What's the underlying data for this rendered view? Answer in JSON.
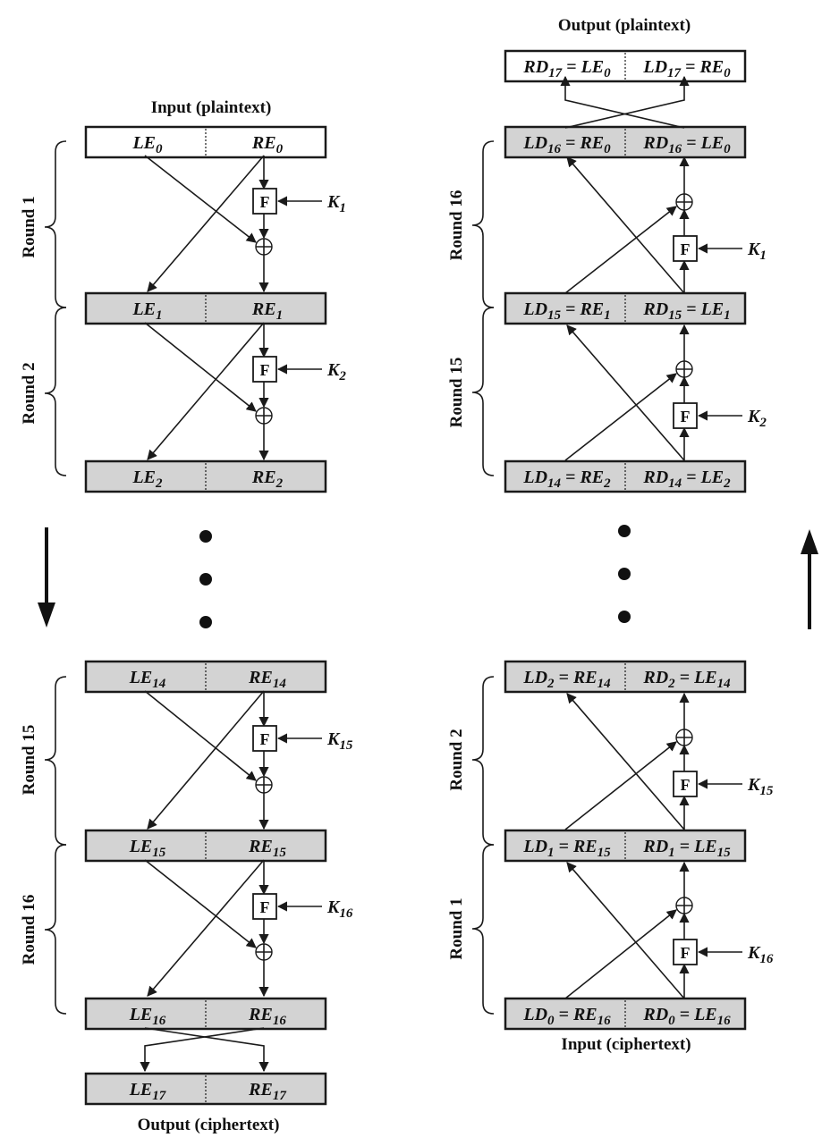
{
  "encryption": {
    "input_label": "Input (plaintext)",
    "output_label": "Output (ciphertext)",
    "rows": [
      {
        "left": [
          "LE",
          "0"
        ],
        "right": [
          "RE",
          "0"
        ],
        "style": "white"
      },
      {
        "left": [
          "LE",
          "1"
        ],
        "right": [
          "RE",
          "1"
        ],
        "style": "gray"
      },
      {
        "left": [
          "LE",
          "2"
        ],
        "right": [
          "RE",
          "2"
        ],
        "style": "gray"
      },
      {
        "left": [
          "LE",
          "14"
        ],
        "right": [
          "RE",
          "14"
        ],
        "style": "gray"
      },
      {
        "left": [
          "LE",
          "15"
        ],
        "right": [
          "RE",
          "15"
        ],
        "style": "gray"
      },
      {
        "left": [
          "LE",
          "16"
        ],
        "right": [
          "RE",
          "16"
        ],
        "style": "gray"
      },
      {
        "left": [
          "LE",
          "17"
        ],
        "right": [
          "RE",
          "17"
        ],
        "style": "gray"
      }
    ],
    "rounds": [
      {
        "label": "Round 1",
        "key": [
          "K",
          "1"
        ]
      },
      {
        "label": "Round 2",
        "key": [
          "K",
          "2"
        ]
      },
      {
        "label": "Round 15",
        "key": [
          "K",
          "15"
        ]
      },
      {
        "label": "Round 16",
        "key": [
          "K",
          "16"
        ]
      }
    ]
  },
  "decryption": {
    "output_label": "Output (plaintext)",
    "input_label": "Input (ciphertext)",
    "rows": [
      {
        "left": [
          "RD",
          "17",
          " = LE",
          "0"
        ],
        "right": [
          "LD",
          "17",
          " = RE",
          "0"
        ],
        "style": "white"
      },
      {
        "left": [
          "LD",
          "16",
          " = RE",
          "0"
        ],
        "right": [
          "RD",
          "16",
          " = LE",
          "0"
        ],
        "style": "gray"
      },
      {
        "left": [
          "LD",
          "15",
          " = RE",
          "1"
        ],
        "right": [
          "RD",
          "15",
          " = LE",
          "1"
        ],
        "style": "gray"
      },
      {
        "left": [
          "LD",
          "14",
          " = RE",
          "2"
        ],
        "right": [
          "RD",
          "14",
          " = LE",
          "2"
        ],
        "style": "gray"
      },
      {
        "left": [
          "LD",
          "2",
          " = RE",
          "14"
        ],
        "right": [
          "RD",
          "2",
          " = LE",
          "14"
        ],
        "style": "gray"
      },
      {
        "left": [
          "LD",
          "1",
          " = RE",
          "15"
        ],
        "right": [
          "RD",
          "1",
          " = LE",
          "15"
        ],
        "style": "gray"
      },
      {
        "left": [
          "LD",
          "0",
          " = RE",
          "16"
        ],
        "right": [
          "RD",
          "0",
          " = LE",
          "16"
        ],
        "style": "gray"
      }
    ],
    "rounds": [
      {
        "label": "Round 16",
        "key": [
          "K",
          "1"
        ]
      },
      {
        "label": "Round 15",
        "key": [
          "K",
          "2"
        ]
      },
      {
        "label": "Round 2",
        "key": [
          "K",
          "15"
        ]
      },
      {
        "label": "Round 1",
        "key": [
          "K",
          "16"
        ]
      }
    ]
  },
  "function_label": "F"
}
